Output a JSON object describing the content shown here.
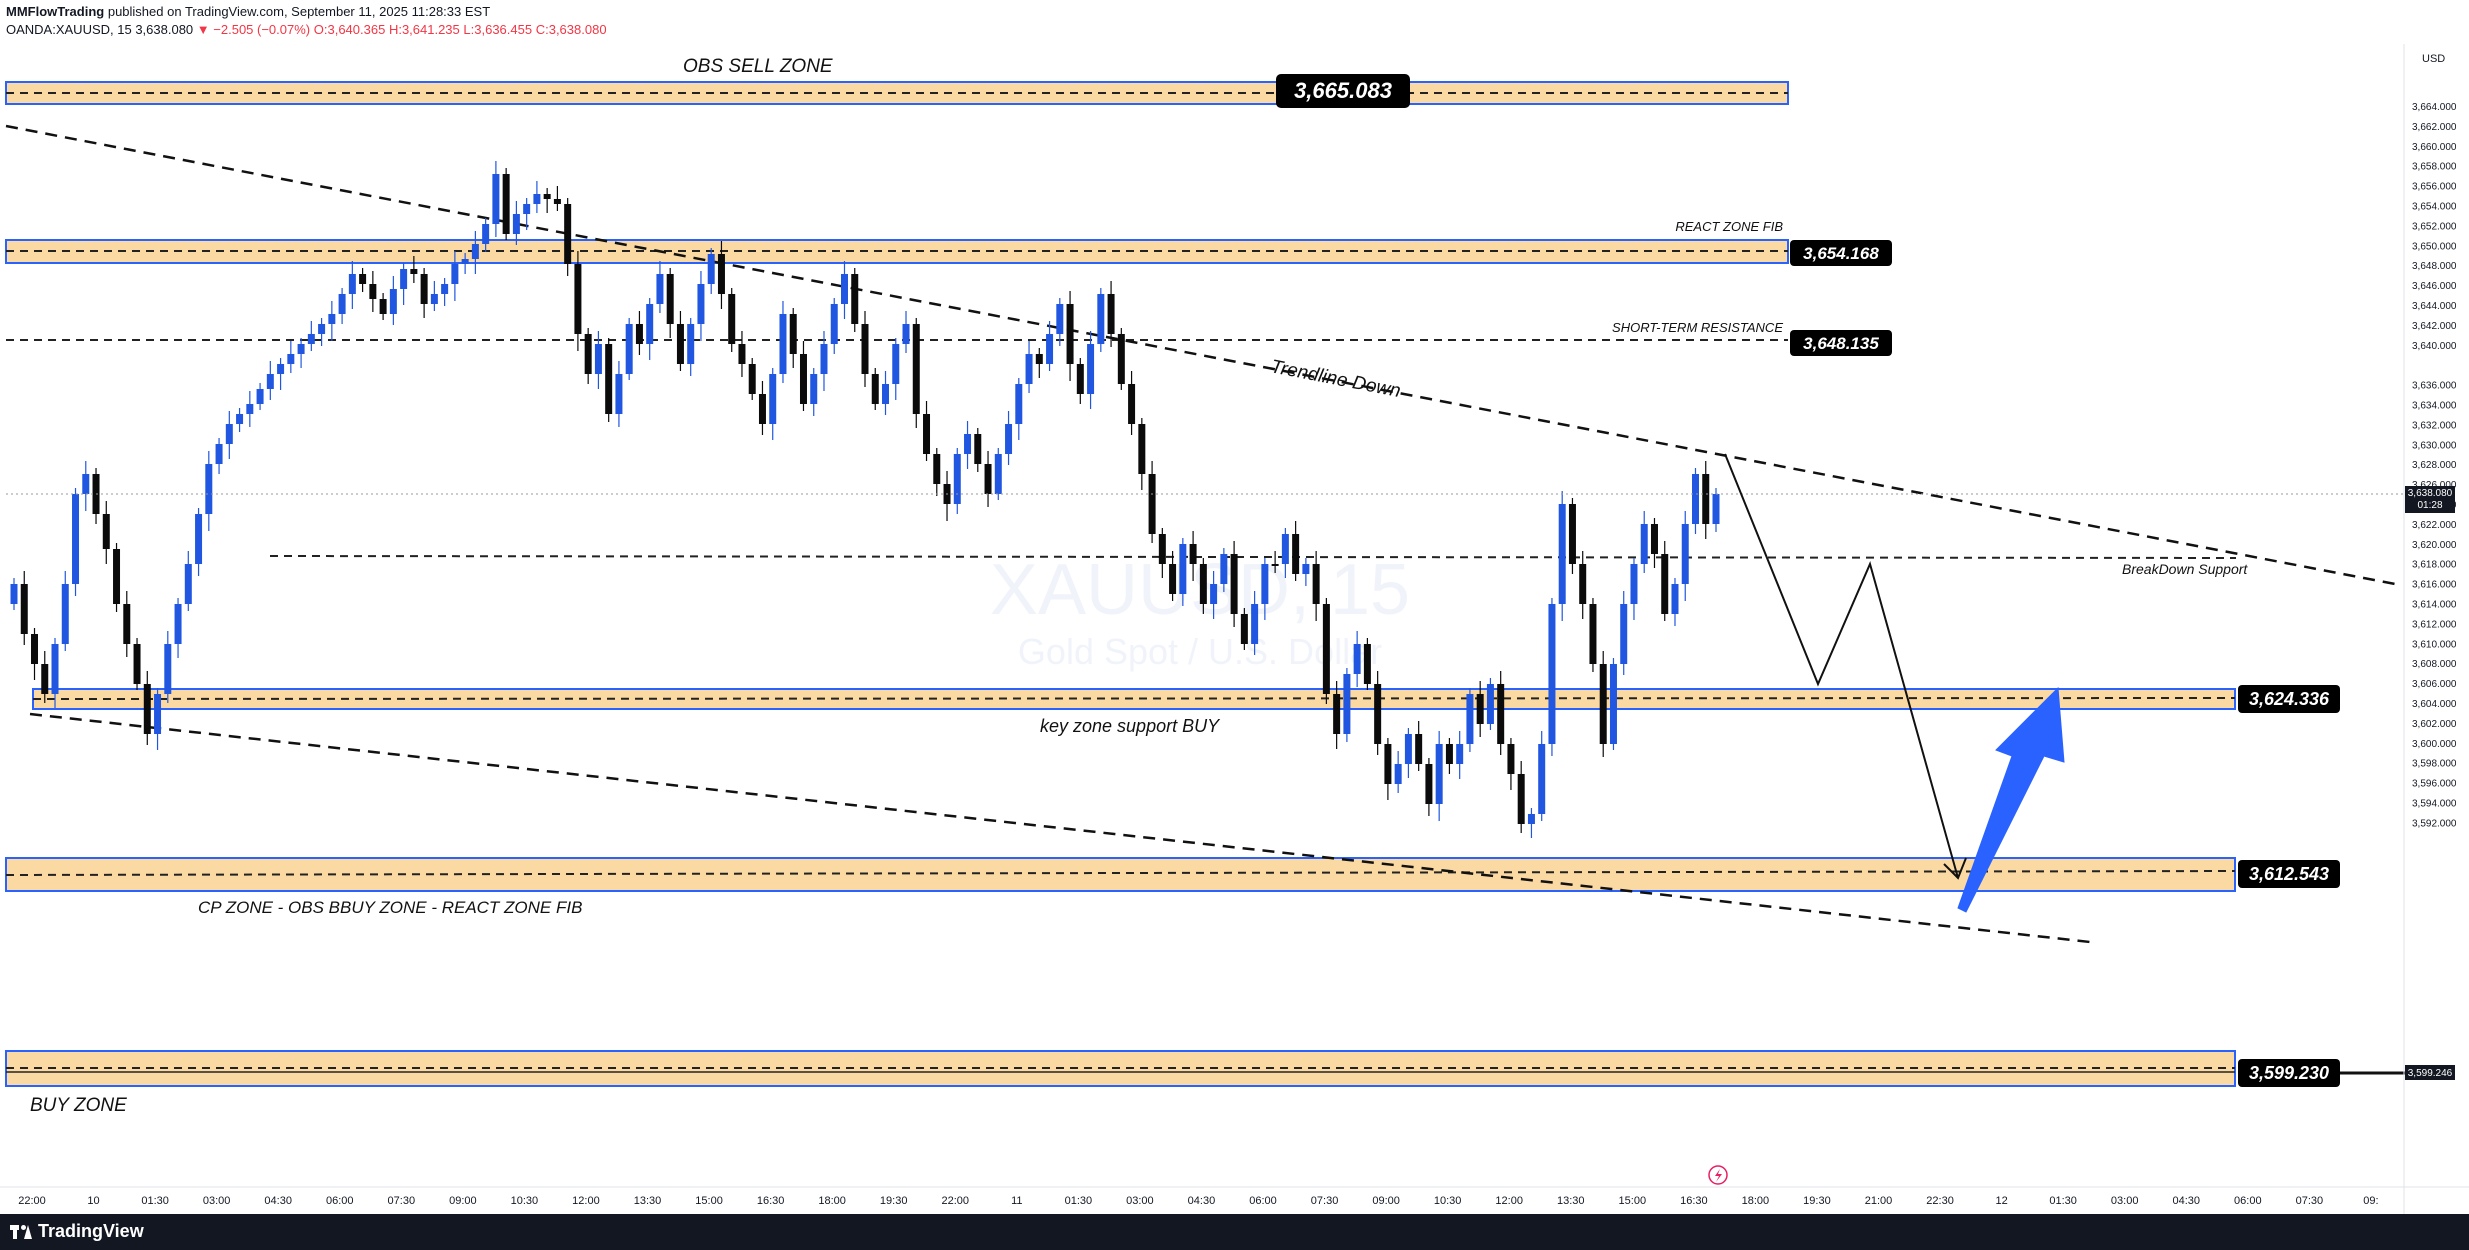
{
  "header": {
    "publisher": "MMFlowTrading",
    "published_text": "published on TradingView.com, September 11, 2025 11:28:33 EST",
    "symbol": "OANDA:XAUUSD, 15",
    "price": "3,638.080",
    "change": "▼ −2.505 (−0.07%)",
    "open": "O:3,640.365",
    "high": "H:3,641.235",
    "low": "L:3,636.455",
    "close": "C:3,638.080"
  },
  "watermark": {
    "symbol": "XAUUSD, 15",
    "description": "Gold Spot / U.S. Dollar"
  },
  "price_axis": {
    "currency": "USD",
    "ticks": [
      "3,664.000",
      "3,662.000",
      "3,660.000",
      "3,658.000",
      "3,656.000",
      "3,654.000",
      "3,652.000",
      "3,650.000",
      "3,648.000",
      "3,646.000",
      "3,644.000",
      "3,642.000",
      "3,640.000",
      "3,636.000",
      "3,634.000",
      "3,632.000",
      "3,630.000",
      "3,628.000",
      "3,626.000",
      "3,624.000",
      "3,622.000",
      "3,620.000",
      "3,618.000",
      "3,616.000",
      "3,614.000",
      "3,612.000",
      "3,610.000",
      "3,608.000",
      "3,606.000",
      "3,604.000",
      "3,602.000",
      "3,600.000",
      "3,598.000",
      "3,596.000",
      "3,594.000",
      "3,592.000"
    ],
    "current_price_label": "3,638.080",
    "countdown": "01:28",
    "line_price_label": "3,599.246"
  },
  "time_axis": {
    "ticks": [
      "22:00",
      "10",
      "01:30",
      "03:00",
      "04:30",
      "06:00",
      "07:30",
      "09:00",
      "10:30",
      "12:00",
      "13:30",
      "15:00",
      "16:30",
      "18:00",
      "19:30",
      "22:00",
      "11",
      "01:30",
      "03:00",
      "04:30",
      "06:00",
      "07:30",
      "09:00",
      "10:30",
      "12:00",
      "13:30",
      "15:00",
      "16:30",
      "18:00",
      "19:30",
      "21:00",
      "22:30",
      "12",
      "01:30",
      "03:00",
      "04:30",
      "06:00",
      "07:30",
      "09:"
    ]
  },
  "zones": {
    "obs_sell": {
      "label": "OBS SELL ZONE",
      "price": "3,665.083"
    },
    "react_fib": {
      "label": "REACT ZONE FIB",
      "price": "3,654.168"
    },
    "short_term_resistance": {
      "label": "SHORT-TERM RESISTANCE",
      "price": "3,648.135"
    },
    "key_support": {
      "label": "key zone support BUY",
      "price": "3,624.336"
    },
    "cp_zone": {
      "label": "CP ZONE - OBS BBUY ZONE - REACT ZONE FIB",
      "price": "3,612.543"
    },
    "buy_zone": {
      "label": "BUY ZONE",
      "price": "3,599.230"
    }
  },
  "annotations": {
    "trendline_down": "Trendline Down",
    "breakdown_support": "BreakDown Support"
  },
  "colors": {
    "up_candle": "#2157e0",
    "down_candle": "#0b0b0b",
    "zone_fill": "#fbd9a3",
    "zone_border": "#2962ff",
    "arrow": "#2962ff"
  },
  "footer": {
    "brand": "TradingView"
  }
}
